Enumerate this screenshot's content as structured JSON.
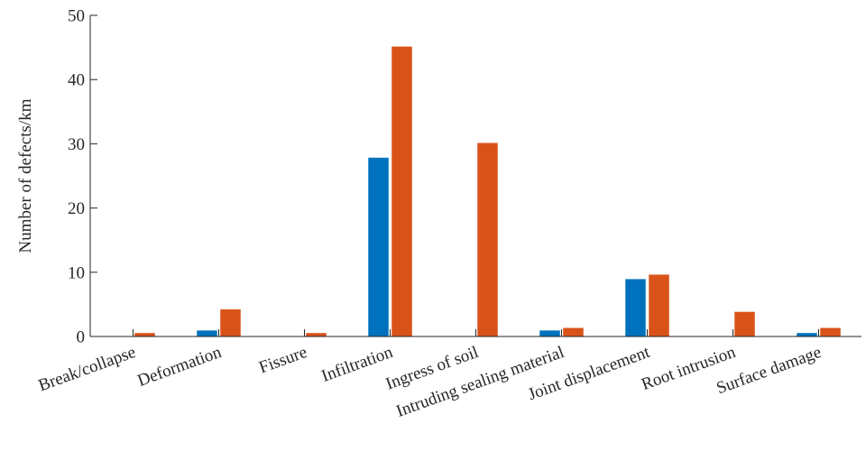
{
  "chart_data": {
    "type": "bar",
    "title": "",
    "xlabel": "",
    "ylabel": "Number of defects/km",
    "ylim": [
      0,
      50
    ],
    "yticks": [
      0,
      10,
      20,
      30,
      40,
      50
    ],
    "grid": false,
    "categories": [
      "Break/collapse",
      "Deformation",
      "Fissure",
      "Infiltration",
      "Ingress of soil",
      "Intruding sealing material",
      "Joint displacement",
      "Root intrusion",
      "Surface damage"
    ],
    "series": [
      {
        "color": "#0072BD",
        "values": [
          0,
          0.9,
          0,
          27.8,
          0,
          0.9,
          8.9,
          0,
          0.5
        ]
      },
      {
        "color": "#D95319",
        "values": [
          0.5,
          4.2,
          0.5,
          45.1,
          30.1,
          1.3,
          9.6,
          3.8,
          1.3
        ]
      }
    ]
  }
}
